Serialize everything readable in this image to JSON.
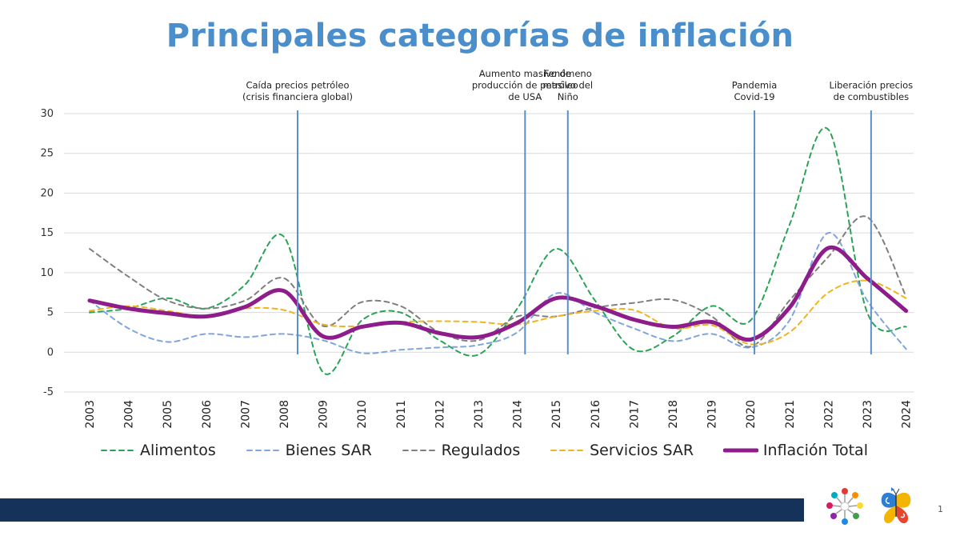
{
  "slide": {
    "title": "Principales categorías de inflación",
    "page_number": "1"
  },
  "colors": {
    "title": "#4a8fcb",
    "footer_bar": "#15325a",
    "event_line": "#5b8fc9",
    "grid": "#d9d9d9"
  },
  "chart_data": {
    "type": "line",
    "title": "Principales categorías de inflación",
    "x": [
      "2003",
      "2004",
      "2005",
      "2006",
      "2007",
      "2008",
      "2009",
      "2010",
      "2011",
      "2012",
      "2013",
      "2014",
      "2015",
      "2016",
      "2017",
      "2018",
      "2019",
      "2020",
      "2021",
      "2022",
      "2023",
      "2024"
    ],
    "ylim": [
      -5,
      30
    ],
    "yticks": [
      -5,
      0,
      5,
      10,
      15,
      20,
      25,
      30
    ],
    "ytick_labels": [
      "-5",
      "0",
      "5",
      "10",
      "15",
      "20",
      "25",
      "30"
    ],
    "grid": true,
    "legend": "bottom",
    "series": [
      {
        "name": "Alimentos",
        "color": "#2aa356",
        "dash": "dashed",
        "width": "normal",
        "values": [
          5.0,
          5.5,
          6.8,
          5.5,
          8.5,
          14.5,
          -2.5,
          4.0,
          5.0,
          1.5,
          -0.3,
          5.5,
          13.0,
          6.5,
          0.3,
          2.0,
          5.8,
          4.0,
          16.0,
          28.0,
          5.0,
          3.2
        ]
      },
      {
        "name": "Bienes SAR",
        "color": "#7ea6dd",
        "dash": "dashed",
        "width": "normal",
        "values": [
          6.5,
          3.0,
          1.3,
          2.3,
          1.9,
          2.3,
          1.5,
          -0.1,
          0.3,
          0.6,
          0.9,
          2.5,
          7.4,
          5.0,
          3.0,
          1.4,
          2.3,
          0.6,
          4.0,
          15.0,
          6.5,
          0.4
        ]
      },
      {
        "name": "Regulados",
        "color": "#7f7f7f",
        "dash": "dashed",
        "width": "normal",
        "values": [
          13.0,
          9.5,
          6.5,
          5.5,
          6.5,
          9.3,
          3.3,
          6.3,
          5.8,
          2.5,
          1.5,
          4.5,
          4.5,
          5.6,
          6.2,
          6.6,
          4.5,
          0.7,
          6.5,
          12.0,
          17.0,
          7.0
        ]
      },
      {
        "name": "Servicios SAR",
        "color": "#f0b51e",
        "dash": "dashed",
        "width": "normal",
        "values": [
          5.2,
          5.8,
          5.2,
          4.5,
          5.5,
          5.3,
          3.5,
          3.3,
          3.8,
          3.9,
          3.8,
          3.5,
          4.5,
          5.2,
          5.3,
          3.0,
          3.4,
          1.0,
          2.5,
          7.5,
          9.0,
          6.8
        ]
      },
      {
        "name": "Inflación Total",
        "color": "#8e1d8c",
        "dash": "solid",
        "width": "thick",
        "values": [
          6.5,
          5.5,
          4.9,
          4.5,
          5.7,
          7.7,
          2.0,
          3.2,
          3.7,
          2.4,
          1.9,
          3.7,
          6.8,
          5.8,
          4.1,
          3.2,
          3.8,
          1.6,
          5.6,
          13.1,
          9.3,
          5.2
        ]
      }
    ],
    "annotations": [
      {
        "at": 2008.35,
        "lines": [
          "Caída precios petróleo",
          "(crisis financiera global)"
        ]
      },
      {
        "at": 2014.2,
        "lines": [
          "Aumento masivo de",
          "producción de petróleo",
          "de USA"
        ]
      },
      {
        "at": 2015.3,
        "lines": [
          "Fenómeno",
          "masivo del",
          "Niño"
        ]
      },
      {
        "at": 2020.1,
        "lines": [
          "Pandemia",
          "Covid-19"
        ]
      },
      {
        "at": 2023.1,
        "lines": [
          "Liberación precios",
          "de combustibles"
        ]
      }
    ]
  }
}
